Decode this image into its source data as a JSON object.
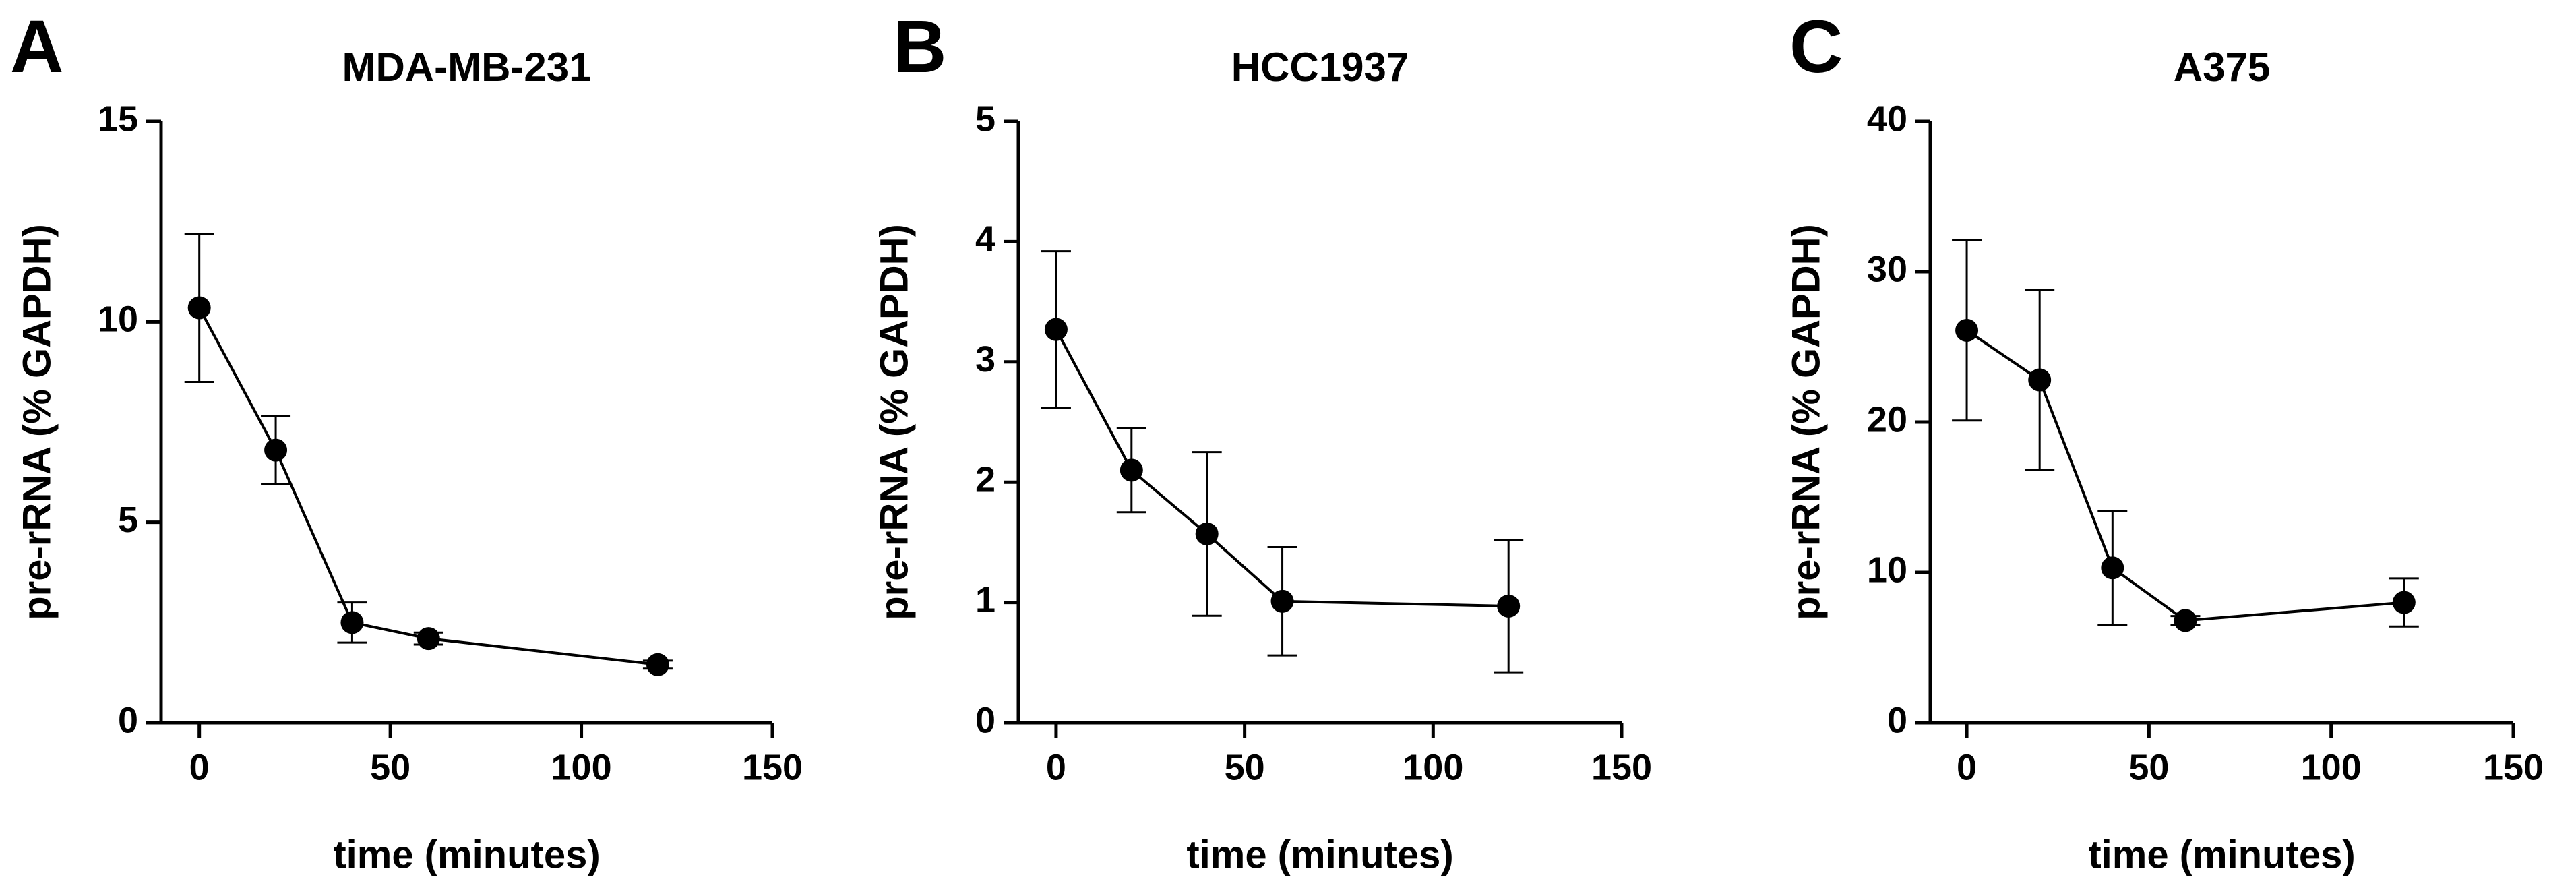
{
  "chart_data": [
    {
      "type": "line",
      "panel_label": "A",
      "title": "MDA-MB-231",
      "xlabel": "time (minutes)",
      "ylabel": "pre-rRNA (% GAPDH)",
      "x": [
        0,
        20,
        40,
        60,
        120
      ],
      "xlim": [
        -10,
        150
      ],
      "xticks": [
        0,
        50,
        100,
        150
      ],
      "ylim": [
        0,
        15
      ],
      "yticks": [
        0,
        5,
        10,
        15
      ],
      "series": [
        {
          "color": "#000000",
          "values": [
            10.35,
            6.8,
            2.5,
            2.1,
            1.45
          ],
          "errors": [
            1.85,
            0.85,
            0.5,
            0.15,
            0.1
          ]
        }
      ]
    },
    {
      "type": "line",
      "panel_label": "B",
      "title": "HCC1937",
      "xlabel": "time (minutes)",
      "ylabel": "pre-rRNA (% GAPDH)",
      "x": [
        0,
        20,
        40,
        60,
        120
      ],
      "xlim": [
        -10,
        150
      ],
      "xticks": [
        0,
        50,
        100,
        150
      ],
      "ylim": [
        0,
        5
      ],
      "yticks": [
        0,
        1,
        2,
        3,
        4,
        5
      ],
      "series": [
        {
          "color": "#000000",
          "values": [
            3.27,
            2.1,
            1.57,
            1.01,
            0.97
          ],
          "errors": [
            0.65,
            0.35,
            0.68,
            0.45,
            0.55
          ]
        }
      ]
    },
    {
      "type": "line",
      "panel_label": "C",
      "title": "A375",
      "xlabel": "time (minutes)",
      "ylabel": "pre-rRNA (% GAPDH)",
      "x": [
        0,
        20,
        40,
        60,
        120
      ],
      "xlim": [
        -10,
        150
      ],
      "xticks": [
        0,
        50,
        100,
        150
      ],
      "ylim": [
        0,
        40
      ],
      "yticks": [
        0,
        10,
        20,
        30,
        40
      ],
      "series": [
        {
          "color": "#000000",
          "values": [
            26.1,
            22.8,
            10.3,
            6.8,
            8.0
          ],
          "errors": [
            6.0,
            6.0,
            3.8,
            0.3,
            1.6
          ]
        }
      ]
    }
  ]
}
